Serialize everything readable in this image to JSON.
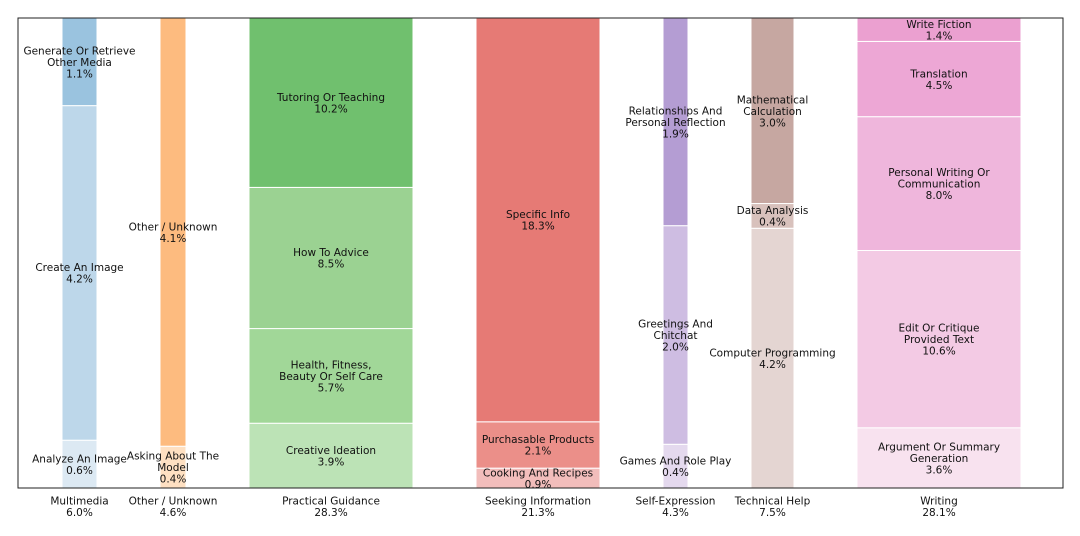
{
  "chart_data": {
    "type": "bar",
    "subtype": "stacked-variable-width (marimekko)",
    "title": "",
    "xlabel": "",
    "ylabel": "",
    "ylim": [
      0,
      1
    ],
    "grid": false,
    "legend": "none",
    "categories": [
      {
        "name": "Multimedia",
        "total": "6.0%",
        "share": 6.0,
        "segments": [
          {
            "label": "Analyze An Image",
            "pct": "0.6%",
            "value": 0.6,
            "color": "#dce9f3"
          },
          {
            "label": "Create An Image",
            "pct": "4.2%",
            "value": 4.2,
            "color": "#bdd7ea"
          },
          {
            "label": "Generate Or Retrieve\nOther Media",
            "pct": "1.1%",
            "value": 1.1,
            "color": "#9ac3df"
          }
        ]
      },
      {
        "name": "Other / Unknown",
        "total": "4.6%",
        "share": 4.6,
        "segments": [
          {
            "label": "Asking About The\nModel",
            "pct": "0.4%",
            "value": 0.4,
            "color": "#fee0c2"
          },
          {
            "label": "Other / Unknown",
            "pct": "4.1%",
            "value": 4.1,
            "color": "#fdbb7f"
          }
        ]
      },
      {
        "name": "Practical Guidance",
        "total": "28.3%",
        "share": 28.3,
        "segments": [
          {
            "label": "Creative Ideation",
            "pct": "3.9%",
            "value": 3.9,
            "color": "#bce3b6"
          },
          {
            "label": "Health, Fitness,\nBeauty Or Self Care",
            "pct": "5.7%",
            "value": 5.7,
            "color": "#a1d798"
          },
          {
            "label": "How To Advice",
            "pct": "8.5%",
            "value": 8.5,
            "color": "#9bd292"
          },
          {
            "label": "Tutoring Or Teaching",
            "pct": "10.2%",
            "value": 10.2,
            "color": "#70c06e"
          }
        ]
      },
      {
        "name": "Seeking Information",
        "total": "21.3%",
        "share": 21.3,
        "segments": [
          {
            "label": "Cooking And Recipes",
            "pct": "0.9%",
            "value": 0.9,
            "color": "#f2bdbb"
          },
          {
            "label": "Purchasable Products",
            "pct": "2.1%",
            "value": 2.1,
            "color": "#eb8f89"
          },
          {
            "label": "Specific Info",
            "pct": "18.3%",
            "value": 18.3,
            "color": "#e67a75"
          }
        ]
      },
      {
        "name": "Self-Expression",
        "total": "4.3%",
        "share": 4.3,
        "segments": [
          {
            "label": "Games And Role Play",
            "pct": "0.4%",
            "value": 0.4,
            "color": "#e4d9ee"
          },
          {
            "label": "Greetings And\nChitchat",
            "pct": "2.0%",
            "value": 2.0,
            "color": "#cebde2"
          },
          {
            "label": "Relationships And\nPersonal Reflection",
            "pct": "1.9%",
            "value": 1.9,
            "color": "#b49dd3"
          }
        ]
      },
      {
        "name": "Technical Help",
        "total": "7.5%",
        "share": 7.5,
        "segments": [
          {
            "label": "Computer Programming",
            "pct": "4.2%",
            "value": 4.2,
            "color": "#e4d5d2"
          },
          {
            "label": "Data Analysis",
            "pct": "0.4%",
            "value": 0.4,
            "color": "#d8c1bc"
          },
          {
            "label": "Mathematical\nCalculation",
            "pct": "3.0%",
            "value": 3.0,
            "color": "#c6a7a1"
          }
        ]
      },
      {
        "name": "Writing",
        "total": "28.1%",
        "share": 28.1,
        "segments": [
          {
            "label": "Argument Or Summary\nGeneration",
            "pct": "3.6%",
            "value": 3.6,
            "color": "#f8e2ef"
          },
          {
            "label": "Edit Or Critique\nProvided Text",
            "pct": "10.6%",
            "value": 10.6,
            "color": "#f3cae4"
          },
          {
            "label": "Personal Writing Or\nCommunication",
            "pct": "8.0%",
            "value": 8.0,
            "color": "#efb6dc"
          },
          {
            "label": "Translation",
            "pct": "4.5%",
            "value": 4.5,
            "color": "#eda7d5"
          },
          {
            "label": "Write Fiction",
            "pct": "1.4%",
            "value": 1.4,
            "color": "#eba0d0"
          }
        ]
      }
    ]
  }
}
